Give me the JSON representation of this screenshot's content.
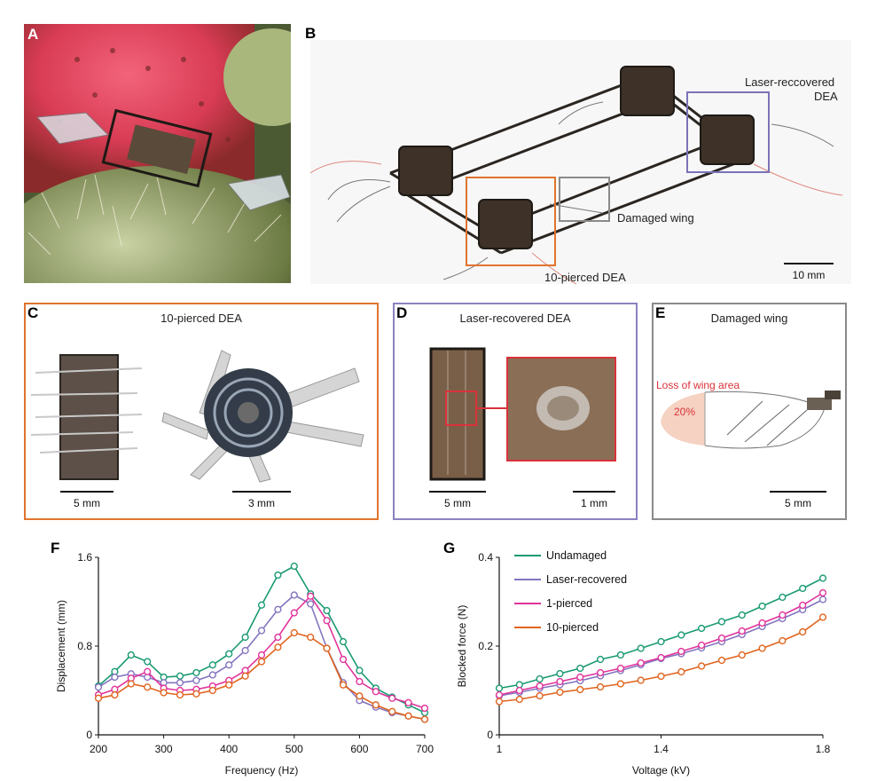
{
  "panels": {
    "A": {
      "label": "A"
    },
    "B": {
      "label": "B",
      "annot_laser_line1": "Laser-reccovered",
      "annot_laser_line2": "DEA",
      "annot_damaged": "Damaged wing",
      "annot_pierced": "10-pierced DEA",
      "scale": "10 mm"
    },
    "C": {
      "label": "C",
      "title": "10-pierced DEA",
      "scale1": "5 mm",
      "scale2": "3 mm"
    },
    "D": {
      "label": "D",
      "title": "Laser-recovered DEA",
      "scale1": "5 mm",
      "scale2": "1 mm"
    },
    "E": {
      "label": "E",
      "title": "Damaged wing",
      "loss_label": "Loss of wing area",
      "loss_pct": "20%",
      "scale": "5 mm"
    },
    "F": {
      "label": "F"
    },
    "G": {
      "label": "G"
    }
  },
  "colors": {
    "undamaged": "#1a9a73",
    "laser": "#8474c0",
    "pierced1": "#e0349a",
    "pierced10": "#e0641e",
    "box_c": "#e0742e",
    "box_d": "#8a83c0",
    "box_e": "#8a8a8a",
    "red_box": "#d9323a"
  },
  "chart_data": [
    {
      "type": "line",
      "panel": "F",
      "xlabel": "Frequency (Hz)",
      "ylabel": "Displacement (mm)",
      "xlim": [
        200,
        700
      ],
      "ylim": [
        0,
        1.6
      ],
      "xticks": [
        200,
        300,
        400,
        500,
        600,
        700
      ],
      "yticks": [
        0,
        0.8,
        1.6
      ],
      "x": [
        200,
        225,
        250,
        275,
        300,
        325,
        350,
        375,
        400,
        425,
        450,
        475,
        500,
        525,
        550,
        575,
        600,
        625,
        650,
        675,
        700
      ],
      "series": [
        {
          "key": "undamaged",
          "values": [
            0.44,
            0.57,
            0.72,
            0.66,
            0.52,
            0.53,
            0.56,
            0.63,
            0.73,
            0.88,
            1.17,
            1.44,
            1.52,
            1.27,
            1.12,
            0.84,
            0.58,
            0.42,
            0.34,
            0.27,
            0.2
          ]
        },
        {
          "key": "laser",
          "values": [
            0.43,
            0.52,
            0.55,
            0.52,
            0.47,
            0.47,
            0.49,
            0.54,
            0.63,
            0.76,
            0.94,
            1.13,
            1.26,
            1.18,
            0.78,
            0.47,
            0.31,
            0.25,
            0.2,
            0.17,
            0.14
          ]
        },
        {
          "key": "pierced1",
          "values": [
            0.36,
            0.41,
            0.51,
            0.57,
            0.42,
            0.4,
            0.41,
            0.44,
            0.49,
            0.58,
            0.72,
            0.88,
            1.1,
            1.25,
            1.03,
            0.68,
            0.48,
            0.39,
            0.33,
            0.29,
            0.24
          ]
        },
        {
          "key": "pierced10",
          "values": [
            0.33,
            0.36,
            0.46,
            0.43,
            0.38,
            0.36,
            0.37,
            0.4,
            0.45,
            0.53,
            0.66,
            0.79,
            0.92,
            0.88,
            0.78,
            0.45,
            0.35,
            0.27,
            0.21,
            0.17,
            0.14
          ]
        }
      ]
    },
    {
      "type": "line",
      "panel": "G",
      "xlabel": "Voltage (kV)",
      "ylabel": "Blocked force (N)",
      "xlim": [
        1.0,
        1.8
      ],
      "ylim": [
        0,
        0.4
      ],
      "xticks": [
        1,
        1.4,
        1.8
      ],
      "yticks": [
        0,
        0.2,
        0.4
      ],
      "x": [
        1.0,
        1.05,
        1.1,
        1.15,
        1.2,
        1.25,
        1.3,
        1.35,
        1.4,
        1.45,
        1.5,
        1.55,
        1.6,
        1.65,
        1.7,
        1.75,
        1.8
      ],
      "legend": [
        {
          "key": "undamaged",
          "label": "Undamaged"
        },
        {
          "key": "laser",
          "label": "Laser-recovered"
        },
        {
          "key": "pierced1",
          "label": "1-pierced"
        },
        {
          "key": "pierced10",
          "label": "10-pierced"
        }
      ],
      "series": [
        {
          "key": "undamaged",
          "values": [
            0.105,
            0.113,
            0.126,
            0.138,
            0.15,
            0.17,
            0.18,
            0.195,
            0.21,
            0.225,
            0.24,
            0.255,
            0.27,
            0.29,
            0.31,
            0.33,
            0.353
          ]
        },
        {
          "key": "laser",
          "values": [
            0.088,
            0.096,
            0.105,
            0.113,
            0.122,
            0.133,
            0.145,
            0.158,
            0.172,
            0.183,
            0.196,
            0.21,
            0.226,
            0.244,
            0.262,
            0.282,
            0.305
          ]
        },
        {
          "key": "pierced1",
          "values": [
            0.09,
            0.1,
            0.11,
            0.12,
            0.13,
            0.14,
            0.15,
            0.162,
            0.174,
            0.188,
            0.202,
            0.218,
            0.234,
            0.252,
            0.27,
            0.292,
            0.32
          ]
        },
        {
          "key": "pierced10",
          "values": [
            0.075,
            0.08,
            0.088,
            0.096,
            0.102,
            0.108,
            0.115,
            0.123,
            0.132,
            0.142,
            0.155,
            0.168,
            0.18,
            0.195,
            0.212,
            0.232,
            0.265
          ]
        }
      ]
    }
  ]
}
